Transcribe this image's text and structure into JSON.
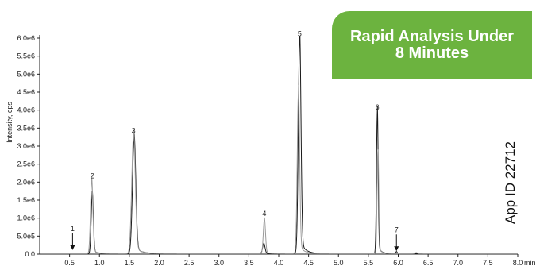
{
  "banner": {
    "line1": "Rapid Analysis Under",
    "line2": "8 Minutes",
    "color": "#6cb33f"
  },
  "app_id": "App ID 22712",
  "chart_data": {
    "type": "line",
    "title": "",
    "xlabel": "",
    "x_unit_label": "min",
    "ylabel": "Intensity, cps",
    "xlim": [
      0,
      8.0
    ],
    "ylim": [
      0,
      6000000.0
    ],
    "x_ticks": [
      0.5,
      1.0,
      1.5,
      2.0,
      2.5,
      3.0,
      3.5,
      4.0,
      4.5,
      5.0,
      5.5,
      6.0,
      6.5,
      7.0,
      7.5,
      8.0
    ],
    "x_tick_labels": [
      "0.5",
      "1.0",
      "1.5",
      "2.0",
      "2.5",
      "3.0",
      "3.5",
      "4.0",
      "4.5",
      "5.0",
      "5.5",
      "6.0",
      "6.5",
      "7.0",
      "7.5",
      "8.0"
    ],
    "y_ticks": [
      0,
      500000,
      1000000,
      1500000,
      2000000,
      2500000,
      3000000,
      3500000,
      4000000,
      4500000,
      5000000,
      5500000,
      6000000
    ],
    "y_tick_labels": [
      "0.0",
      "5.0e5",
      "1.0e6",
      "1.5e6",
      "2.0e6",
      "2.5e6",
      "3.0e6",
      "3.5e6",
      "4.0e6",
      "4.5e6",
      "5.0e6",
      "5.5e6",
      "6.0e6"
    ],
    "grid": false,
    "series": [
      {
        "color": "#1a1a1a",
        "peaks": [
          {
            "t": 0.88,
            "h": 1650000,
            "w": 0.018
          },
          {
            "t": 1.58,
            "h": 3150000,
            "w": 0.028
          },
          {
            "t": 3.75,
            "h": 280000,
            "w": 0.02
          },
          {
            "t": 4.35,
            "h": 5950000,
            "w": 0.022
          },
          {
            "t": 5.65,
            "h": 3900000,
            "w": 0.014
          },
          {
            "t": 5.97,
            "h": 60000,
            "w": 0.012
          }
        ]
      },
      {
        "color": "#9a9a9a",
        "peaks": [
          {
            "t": 0.87,
            "h": 2000000,
            "w": 0.02
          },
          {
            "t": 1.57,
            "h": 3250000,
            "w": 0.03
          },
          {
            "t": 3.76,
            "h": 950000,
            "w": 0.018
          },
          {
            "t": 4.33,
            "h": 4450000,
            "w": 0.02
          },
          {
            "t": 5.66,
            "h": 2850000,
            "w": 0.014
          },
          {
            "t": 6.3,
            "h": 30000,
            "w": 0.02
          }
        ]
      }
    ],
    "peak_labels": [
      {
        "label": "1",
        "x": 0.55,
        "y": 90000,
        "arrow": true
      },
      {
        "label": "2",
        "x": 0.88,
        "y": 2000000,
        "arrow": false
      },
      {
        "label": "3",
        "x": 1.57,
        "y": 3250000,
        "arrow": false
      },
      {
        "label": "4",
        "x": 3.76,
        "y": 950000,
        "arrow": false
      },
      {
        "label": "5",
        "x": 4.35,
        "y": 5950000,
        "arrow": false
      },
      {
        "label": "6",
        "x": 5.65,
        "y": 3900000,
        "arrow": false
      },
      {
        "label": "7",
        "x": 5.97,
        "y": 60000,
        "arrow": true
      }
    ]
  }
}
